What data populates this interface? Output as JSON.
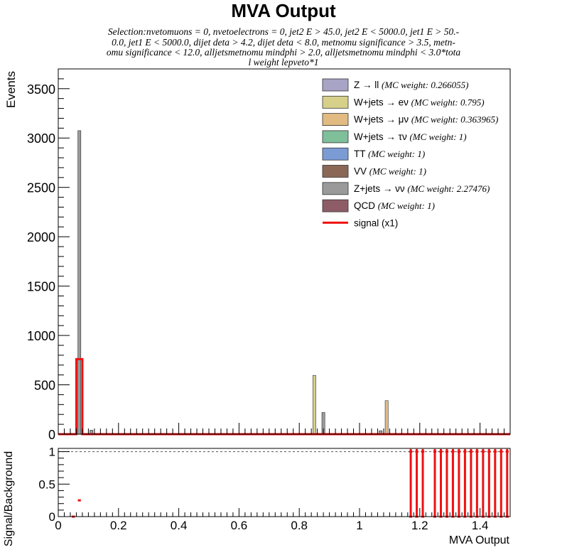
{
  "chart_data": [
    {
      "type": "bar",
      "title": "MVA Output",
      "subtitle_lines": [
        "Selection:nvetomuons = 0, nvetoelectrons = 0, jet2 E > 45.0, jet2 E < 5000.0, jet1 E > 50.-",
        "0.0, jet1 E < 5000.0, dijet deta > 4.2, dijet deta < 8.0, metnomu significance > 3.5, metn-",
        "omu significance < 12.0, alljetsmetnomu mindphi > 2.0, alljetsmetnomu mindphi < 3.0*tota",
        "l weight lepveto*1"
      ],
      "xlabel": "",
      "ylabel": "Events",
      "xlim": [
        0,
        1.5
      ],
      "ylim": [
        0,
        3700
      ],
      "yticks": [
        0,
        500,
        1000,
        1500,
        2000,
        2500,
        3000,
        3500
      ],
      "stacked": true,
      "bin_width": 0.02,
      "series": [
        {
          "name": "Z → ll",
          "weight_note": "(MC weight: 0.266055)",
          "color": "#a7a4c6",
          "bars": []
        },
        {
          "name": "W+jets → eν",
          "weight_note": "(MC weight: 0.795)",
          "color": "#d6d08a",
          "bars": [
            {
              "x": 0.85,
              "y": 595
            }
          ]
        },
        {
          "name": "W+jets → μν",
          "weight_note": "(MC weight: 0.363965)",
          "color": "#e2bb82",
          "bars": [
            {
              "x": 1.09,
              "y": 340
            }
          ]
        },
        {
          "name": "W+jets → τν",
          "weight_note": "(MC weight: 1)",
          "color": "#7fbf9a",
          "bars": []
        },
        {
          "name": "TT",
          "weight_note": "(MC weight: 1)",
          "color": "#7b9bd4",
          "bars": []
        },
        {
          "name": "VV",
          "weight_note": "(MC weight: 1)",
          "color": "#8b6758",
          "bars": []
        },
        {
          "name": "Z+jets → νν",
          "weight_note": "(MC weight: 2.27476)",
          "color": "#9a9a9a",
          "bars": [
            {
              "x": 0.07,
              "y": 3075
            },
            {
              "x": 0.11,
              "y": 40
            },
            {
              "x": 0.88,
              "y": 220
            },
            {
              "x": 1.07,
              "y": 35
            }
          ]
        },
        {
          "name": "QCD",
          "weight_note": "(MC weight: 1)",
          "color": "#8e5c66",
          "bars": []
        }
      ],
      "signal": {
        "name": "signal (x1)",
        "color": "#ee1111",
        "bins": [
          {
            "x": 0.07,
            "y": 760
          }
        ]
      },
      "legend_position": "top-right"
    },
    {
      "type": "bar",
      "xlabel": "MVA Output",
      "ylabel": "Signal/Background",
      "xlim": [
        0,
        1.5
      ],
      "ylim": [
        0,
        1.05
      ],
      "xticks": [
        0,
        0.2,
        0.4,
        0.6,
        0.8,
        1,
        1.2,
        1.4
      ],
      "xtick_labels": [
        "0",
        "0.2",
        "0.4",
        "0.6",
        "0.8",
        "1",
        "1.2",
        "1.4"
      ],
      "yticks": [
        0,
        0.5,
        1
      ],
      "ytick_labels": [
        "0",
        "0.5",
        "1"
      ],
      "reference_line": 1,
      "ratio_points": [
        {
          "x": 0.05,
          "y": 0.0
        },
        {
          "x": 0.07,
          "y": 0.25
        },
        {
          "x": 1.17,
          "y": 1
        },
        {
          "x": 1.19,
          "y": 1
        },
        {
          "x": 1.21,
          "y": 1
        },
        {
          "x": 1.25,
          "y": 1
        },
        {
          "x": 1.27,
          "y": 1
        },
        {
          "x": 1.29,
          "y": 1
        },
        {
          "x": 1.31,
          "y": 1
        },
        {
          "x": 1.33,
          "y": 1
        },
        {
          "x": 1.35,
          "y": 1
        },
        {
          "x": 1.37,
          "y": 1
        },
        {
          "x": 1.39,
          "y": 1
        },
        {
          "x": 1.41,
          "y": 1
        },
        {
          "x": 1.43,
          "y": 1
        },
        {
          "x": 1.45,
          "y": 1
        },
        {
          "x": 1.47,
          "y": 1
        },
        {
          "x": 1.49,
          "y": 1
        }
      ],
      "color": "#ee1111"
    }
  ]
}
